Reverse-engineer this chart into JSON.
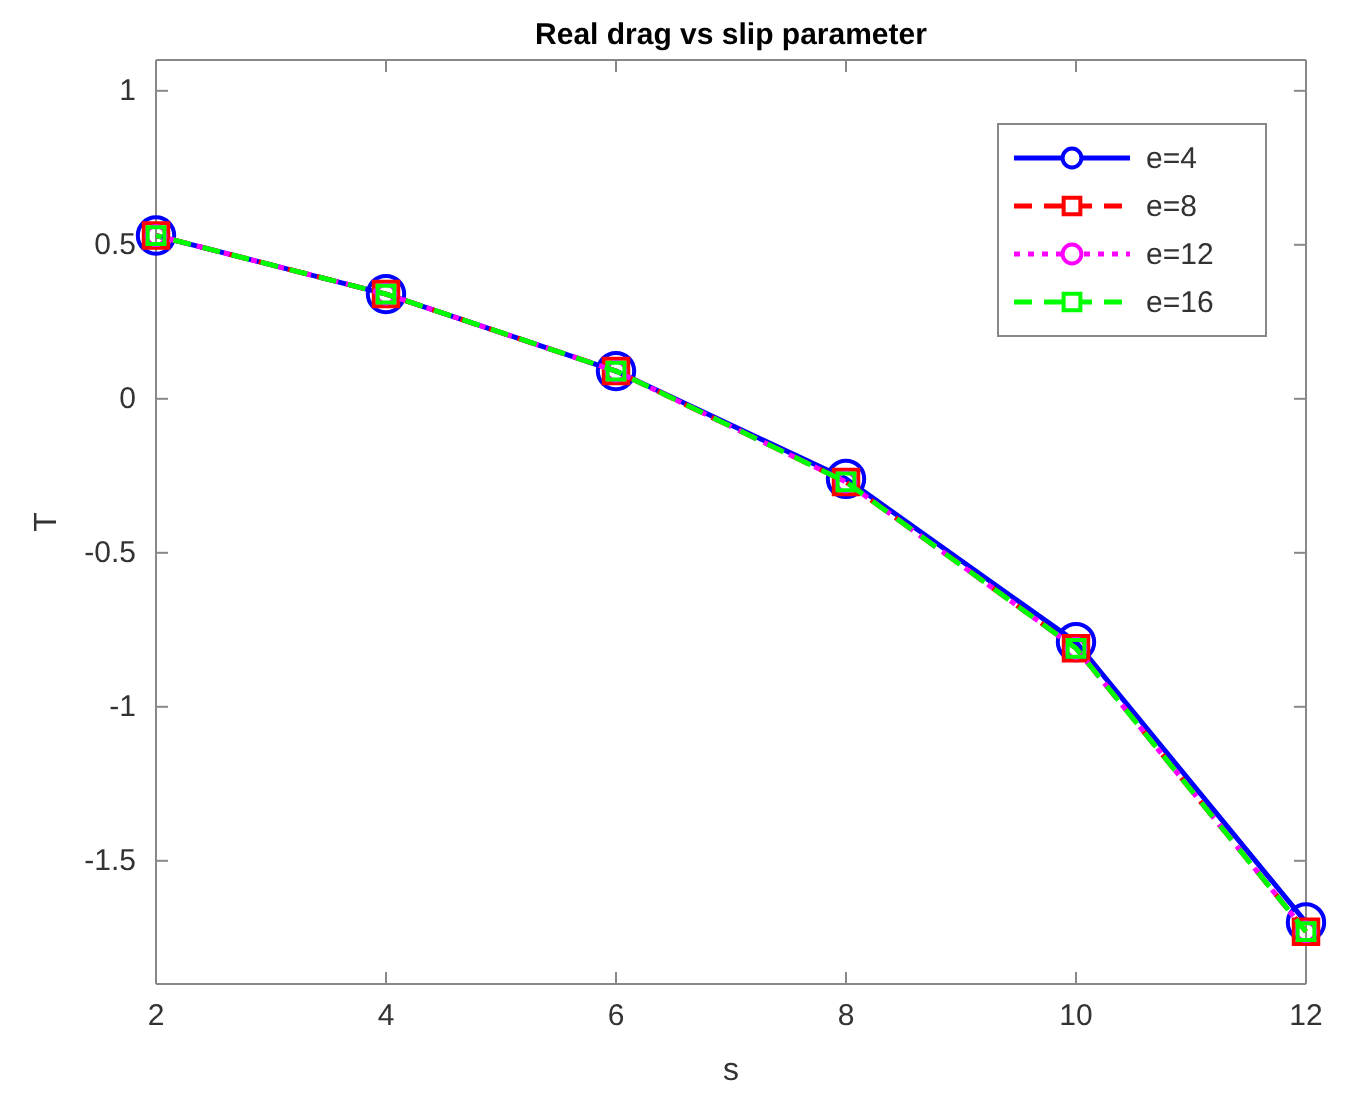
{
  "chart_data": {
    "type": "line",
    "title": "Real drag vs slip parameter",
    "xlabel": "s",
    "ylabel": "T",
    "x": [
      2,
      4,
      6,
      8,
      10,
      12
    ],
    "series": [
      {
        "name": "e=4",
        "color": "#0000ff",
        "marker": "circle",
        "line_style": "solid",
        "values": [
          0.53,
          0.34,
          0.09,
          -0.26,
          -0.79,
          -1.7
        ]
      },
      {
        "name": "e=8",
        "color": "#ff0000",
        "marker": "square",
        "line_style": "dashed",
        "values": [
          0.53,
          0.34,
          0.09,
          -0.27,
          -0.81,
          -1.73
        ]
      },
      {
        "name": "e=12",
        "color": "#ff00ff",
        "marker": "circle",
        "line_style": "dotted",
        "values": [
          0.53,
          0.34,
          0.09,
          -0.27,
          -0.81,
          -1.73
        ]
      },
      {
        "name": "e=16",
        "color": "#00ff00",
        "marker": "square",
        "line_style": "dashed",
        "values": [
          0.53,
          0.34,
          0.09,
          -0.27,
          -0.81,
          -1.73
        ]
      }
    ],
    "xlim": [
      2,
      12
    ],
    "xticks": [
      2,
      4,
      6,
      8,
      10,
      12
    ],
    "ylim": [
      -1.9,
      1.1
    ],
    "yticks": [
      -1.5,
      -1,
      -0.5,
      0,
      0.5,
      1
    ],
    "grid": false,
    "legend": "top right"
  }
}
